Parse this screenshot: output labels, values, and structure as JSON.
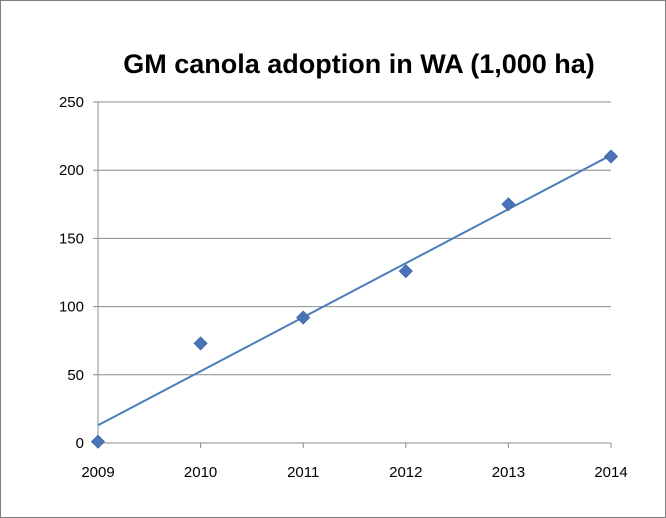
{
  "chart_data": {
    "type": "scatter",
    "title": "GM canola adoption in WA (1,000 ha)",
    "xlabel": "",
    "ylabel": "",
    "x": [
      2009,
      2010,
      2011,
      2012,
      2013,
      2014
    ],
    "series": [
      {
        "values": [
          1,
          73,
          92,
          126,
          175,
          210
        ]
      }
    ],
    "trendline": {
      "type": "linear",
      "start": [
        2009,
        13
      ],
      "end": [
        2014,
        211
      ]
    },
    "xlim": [
      2009,
      2014
    ],
    "ylim": [
      0,
      250
    ],
    "x_ticks": [
      "2009",
      "2010",
      "2011",
      "2012",
      "2013",
      "2014"
    ],
    "y_ticks": [
      "0",
      "50",
      "100",
      "150",
      "200",
      "250"
    ],
    "grid": "horizontal",
    "legend": "none",
    "colors": {
      "marker": "#4a74b5",
      "trendline": "#4a7ebb",
      "grid": "#8c8c8c",
      "axis": "#8c8c8c"
    }
  }
}
